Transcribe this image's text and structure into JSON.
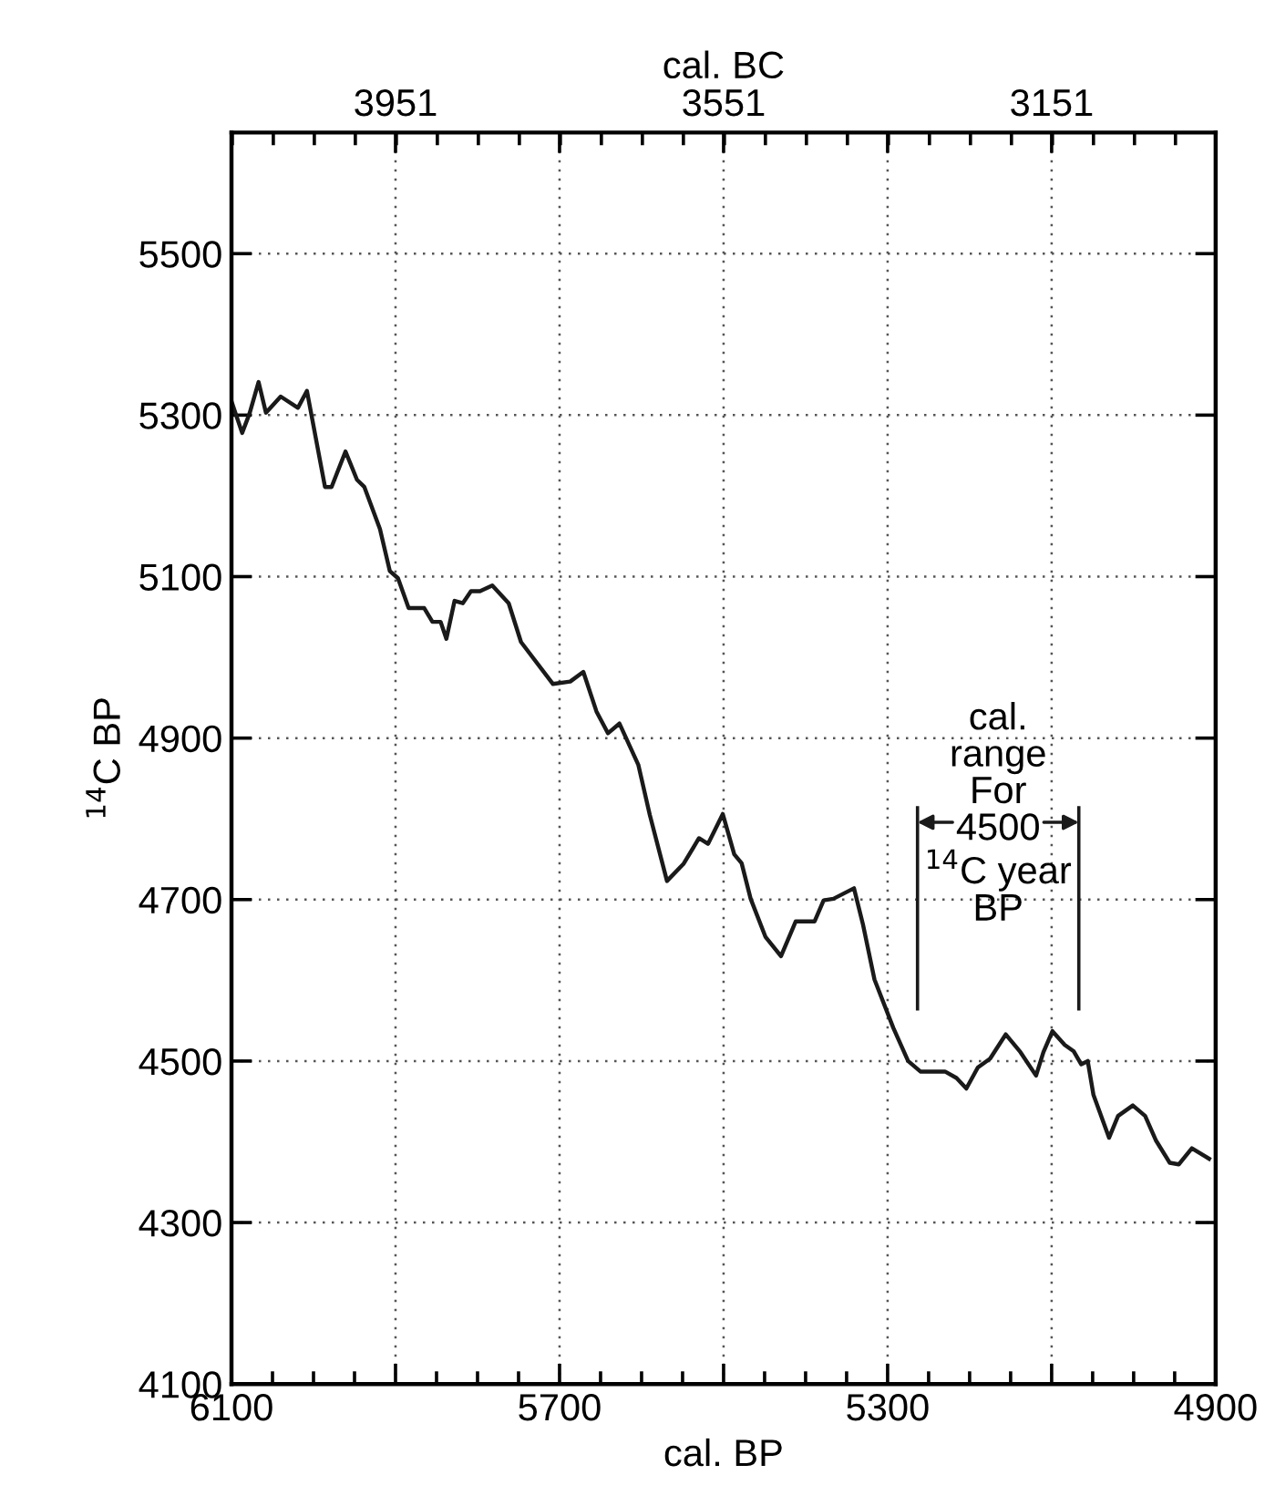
{
  "chart_data": {
    "type": "line",
    "xlabel": "cal. BP",
    "x2label": "cal. BC",
    "ylabel": "$^{14}$C BP",
    "xlim": [
      6100,
      4900
    ],
    "xticks": [
      6100,
      {
        "value": 5900,
        "label": null
      },
      5700,
      {
        "value": 5500,
        "label": null
      },
      5300,
      {
        "value": 5100,
        "label": null
      },
      4900
    ],
    "x2lim": [
      4151,
      2951
    ],
    "x2ticks": [
      {
        "value": 4151,
        "label": null
      },
      3951,
      {
        "value": 3751,
        "label": null
      },
      3551,
      {
        "value": 3351,
        "label": null
      },
      3151,
      {
        "value": 2951,
        "label": null
      }
    ],
    "ylim": [
      4100,
      5650
    ],
    "yticks": [
      4100,
      4300,
      4500,
      4700,
      4900,
      5100,
      5300,
      5500
    ],
    "grid": true,
    "legend": false,
    "marker": "none",
    "line_style": "solid",
    "annotations": [
      "cal.\nrange\nFor\n4500\n$^{14}$C year\nBP"
    ],
    "series": [
      {
        "color": "#1a1a1a",
        "x": [
          6100,
          6087,
          6078,
          6067,
          6058,
          6040,
          6019,
          6008,
          5986,
          5978,
          5961,
          5947,
          5938,
          5919,
          5907,
          5897,
          5884,
          5865,
          5855,
          5845,
          5838,
          5828,
          5818,
          5808,
          5797,
          5782,
          5762,
          5747,
          5708,
          5687,
          5671,
          5655,
          5641,
          5627,
          5604,
          5590,
          5569,
          5549,
          5530,
          5519,
          5501,
          5487,
          5478,
          5467,
          5449,
          5430,
          5412,
          5389,
          5378,
          5366,
          5341,
          5330,
          5316,
          5293,
          5275,
          5260,
          5230,
          5216,
          5204,
          5190,
          5175,
          5156,
          5138,
          5119,
          5110,
          5099,
          5084,
          5073,
          5064,
          5056,
          5049,
          5030,
          5019,
          5001,
          4986,
          4973,
          4956,
          4945,
          4929,
          4908
        ],
        "values": [
          5317,
          5278,
          5302,
          5341,
          5303,
          5323,
          5309,
          5330,
          5211,
          5211,
          5255,
          5220,
          5211,
          5159,
          5107,
          5098,
          5061,
          5061,
          5044,
          5044,
          5023,
          5070,
          5067,
          5082,
          5082,
          5089,
          5067,
          5019,
          4967,
          4970,
          4982,
          4933,
          4906,
          4918,
          4867,
          4805,
          4723,
          4744,
          4776,
          4769,
          4806,
          4756,
          4745,
          4701,
          4654,
          4630,
          4673,
          4673,
          4699,
          4701,
          4714,
          4669,
          4601,
          4541,
          4500,
          4487,
          4487,
          4479,
          4466,
          4492,
          4503,
          4533,
          4511,
          4482,
          4511,
          4537,
          4520,
          4512,
          4496,
          4500,
          4458,
          4405,
          4432,
          4445,
          4432,
          4402,
          4374,
          4372,
          4392,
          4379
        ]
      }
    ]
  }
}
